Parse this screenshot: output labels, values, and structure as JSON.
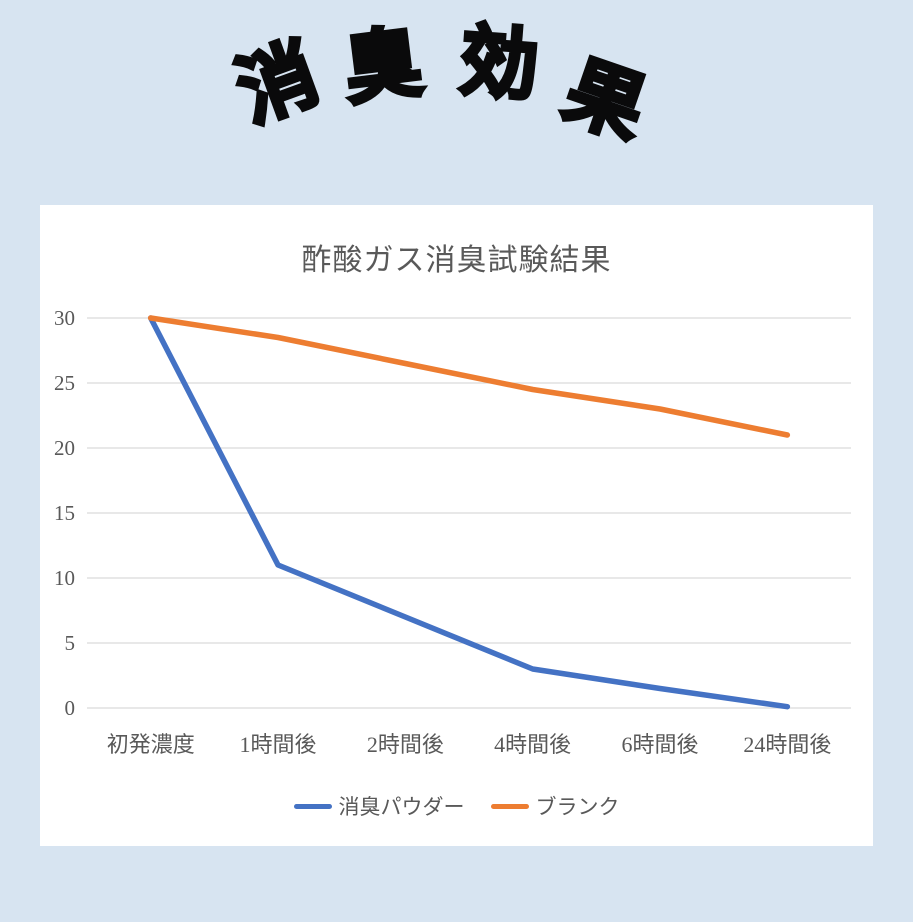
{
  "header": {
    "title": "消臭効果",
    "title_chars": [
      "消",
      "臭",
      "効",
      "果"
    ]
  },
  "chart_data": {
    "type": "line",
    "title": "酢酸ガス消臭試験結果",
    "categories": [
      "初発濃度",
      "1時間後",
      "2時間後",
      "4時間後",
      "6時間後",
      "24時間後"
    ],
    "series": [
      {
        "name": "消臭パウダー",
        "color": "#4472C4",
        "values": [
          30,
          11,
          7,
          3,
          1.5,
          0.1
        ]
      },
      {
        "name": "ブランク",
        "color": "#ED7D31",
        "values": [
          30,
          28.5,
          26.5,
          24.5,
          23,
          21
        ]
      }
    ],
    "xlabel": "",
    "ylabel": "",
    "ylim": [
      0,
      30
    ],
    "yticks": [
      0,
      5,
      10,
      15,
      20,
      25,
      30
    ],
    "grid": true,
    "legend_position": "bottom",
    "colors": {
      "background": "#d7e4f1",
      "card": "#ffffff",
      "text": "#595959",
      "gridline": "#d9d9d9",
      "header_text": "#0a0a0b"
    }
  }
}
